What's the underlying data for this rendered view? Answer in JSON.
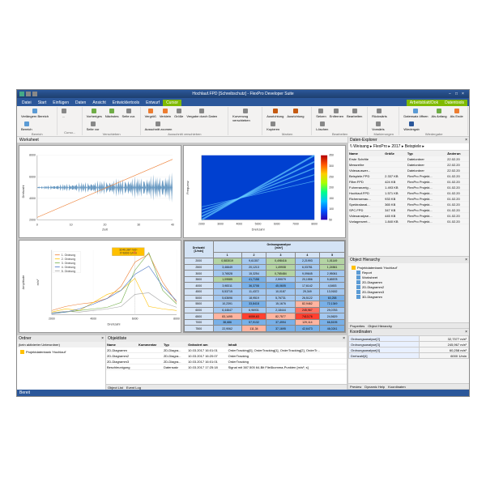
{
  "title": "Hochlauf.FPD [Schreibschutz] - FlexPro Developer Suite",
  "menu": [
    "Datei",
    "Start",
    "Einfügen",
    "Daten",
    "Ansicht",
    "Entwicklertools",
    "Entwurf",
    "Cursor"
  ],
  "activeTab": "Cursor",
  "tabGroup2": [
    "Arbeitsblatt/Dok",
    "Datentools"
  ],
  "ribbon": [
    {
      "label": "Bereich",
      "btns": [
        {
          "t": "Verlängern Bereich",
          "c": "#5b9bd5"
        },
        {
          "t": "Bereich",
          "c": "#5b9bd5"
        }
      ]
    },
    {
      "label": "Curso...",
      "btns": [
        {
          "t": "...",
          "c": "#888"
        }
      ]
    },
    {
      "label": "Verschieben",
      "btns": [
        {
          "t": "Vorheriges",
          "c": "#70ad47"
        },
        {
          "t": "Nächstes",
          "c": "#70ad47"
        },
        {
          "t": "Seite zur.",
          "c": "#888"
        },
        {
          "t": "Seite vor",
          "c": "#888"
        }
      ]
    },
    {
      "label": "Ausschnitt verschieben",
      "btns": [
        {
          "t": "Vergröß",
          "c": "#ed7d31"
        },
        {
          "t": "Verklein",
          "c": "#ed7d31"
        },
        {
          "t": "Größe",
          "c": "#888"
        },
        {
          "t": "Vergabe durch Daten",
          "c": "#888"
        },
        {
          "t": "Ausschnitt zoomen",
          "c": "#888"
        }
      ]
    },
    {
      "label": "",
      "btns": [
        {
          "t": "Kurvenzug verschieben",
          "c": "#888"
        }
      ]
    },
    {
      "label": "Marken",
      "btns": [
        {
          "t": "Ausrichtung",
          "c": "#c55a11"
        },
        {
          "t": "Ausrichtung",
          "c": "#c55a11"
        },
        {
          "t": "Kopieren",
          "c": "#888"
        }
      ]
    },
    {
      "label": "Bearbeiten",
      "btns": [
        {
          "t": "Setzen",
          "c": "#888"
        },
        {
          "t": "Entfernen",
          "c": "#888"
        },
        {
          "t": "Bearbeiten",
          "c": "#888"
        },
        {
          "t": "Löschen",
          "c": "#888"
        }
      ]
    },
    {
      "label": "Markierungen",
      "btns": [
        {
          "t": "Rückwärts",
          "c": "#888"
        },
        {
          "t": "Vorwärts",
          "c": "#888"
        }
      ]
    },
    {
      "label": "Wiedergabe",
      "btns": [
        {
          "t": "Datensatz öffnen",
          "c": "#5b9bd5"
        },
        {
          "t": "Als Anfang",
          "c": "#70ad47"
        },
        {
          "t": "Als Ende",
          "c": "#ed7d31"
        },
        {
          "t": "Wiedergab",
          "c": "#2b579a"
        }
      ]
    }
  ],
  "worksheetTab": "Worksheet",
  "waveform": {
    "ylabel": "Drehzahl",
    "yunit": "1/min",
    "ylim": [
      2000,
      8000
    ],
    "yticks": [
      2000,
      4000,
      6000,
      8000
    ],
    "xlabel": "Zeit",
    "xunit": "s",
    "xlim": [
      0,
      40
    ],
    "xticks": [
      0,
      10,
      20,
      30,
      40
    ],
    "wave_color": "#4682b4",
    "trend_color": "#ed7d31",
    "bg": "#ffffff"
  },
  "spectro": {
    "ylabel": "Frequenz",
    "yunit": "Hz",
    "xlabel": "Drehzahl",
    "xunit": "1/min",
    "xlim": [
      2000,
      8000
    ],
    "xticks": [
      2000,
      3000,
      4000,
      5000,
      6000,
      7000,
      8000
    ],
    "colorbar": {
      "label": "Spektrogram",
      "vals": [
        50,
        100,
        150,
        200,
        250,
        300,
        350
      ],
      "colors": [
        "#2b00b3",
        "#0055ff",
        "#00c3ff",
        "#00ff88",
        "#aaff00",
        "#ffcc00",
        "#ff5500",
        "#b30000"
      ]
    }
  },
  "orders": {
    "ylabel": "Amplitude",
    "yunit": "m/s²",
    "xlabel": "Drehzahl",
    "xunit": "1/min",
    "xlim": [
      2000,
      8000
    ],
    "xticks": [
      2000,
      4000,
      6000,
      8000
    ],
    "ylim": [
      0,
      100
    ],
    "callout": "3240,387 m/s²\\nX=6000 1/min",
    "legend": [
      {
        "l": "1. Ordnung",
        "c": "#ed7d31"
      },
      {
        "l": "2. Ordnung",
        "c": "#ffc000"
      },
      {
        "l": "3. Ordnung",
        "c": "#70ad47"
      },
      {
        "l": "4. Ordnung",
        "c": "#4472c4"
      },
      {
        "l": "5. Ordnung",
        "c": "#a5a5a5"
      }
    ]
  },
  "table": {
    "header1": "Drehzahl",
    "header1u": "[1/min]",
    "header2": "Ordnungsanalyse",
    "header2u": "[m/s²]",
    "cols": [
      "1",
      "2",
      "3",
      "4",
      "5"
    ],
    "rows": [
      [
        "2000",
        "0,583019",
        "9,61307",
        "0,498416",
        "2,21993",
        "1,01149"
      ],
      [
        "2500",
        "3,46649",
        "20,1213",
        "1,49908",
        "6,03781",
        "1,24561"
      ],
      [
        "3000",
        "3,76528",
        "15,3254",
        "0,765484",
        "9,09645",
        "2,95061"
      ],
      [
        "3500",
        "1,09585",
        "41,7158",
        "2,59079",
        "20,1556",
        "5,65578"
      ],
      [
        "4000",
        "3,98311",
        "36,3708",
        "45,0605",
        "17,6142",
        "4,5453"
      ],
      [
        "4500",
        "5,53715",
        "11,4372",
        "10,0187",
        "29,349",
        "13,9182"
      ],
      [
        "5000",
        "5,63696",
        "18,9519",
        "5,76731",
        "26,5122",
        "60,258"
      ],
      [
        "5500",
        "10,2391",
        "33,8418",
        "15,1676",
        "82,9462",
        "72,1349"
      ],
      [
        "6000",
        "6,44647",
        "6,96931",
        "2,18444",
        "245,967",
        "29,0783"
      ],
      [
        "6500",
        "83,1495",
        "6059,63",
        "82,7577",
        "7413,76",
        "24,5629"
      ],
      [
        "7000",
        "38,686",
        "57,9132",
        "37,4994",
        "129,114",
        "66,8195"
      ],
      [
        "7500",
        "22,9062",
        "111,34",
        "37,1695",
        "42,6473",
        "46,0241"
      ]
    ],
    "cellcolors": [
      [
        "#b4d4a4",
        "#a4c8f0",
        "#b4d4a4",
        "#a4c8f0",
        "#b4d4a4"
      ],
      [
        "#a4c8f0",
        "#a4c8f0",
        "#b4d4a4",
        "#a4c8f0",
        "#b4d4a4"
      ],
      [
        "#a4c8f0",
        "#a4c8f0",
        "#b4d4a4",
        "#a4c8f0",
        "#a4c8f0"
      ],
      [
        "#b4d4a4",
        "#78b0e8",
        "#a4c8f0",
        "#a4c8f0",
        "#a4c8f0"
      ],
      [
        "#a4c8f0",
        "#78b0e8",
        "#78b0e8",
        "#a4c8f0",
        "#a4c8f0"
      ],
      [
        "#a4c8f0",
        "#a4c8f0",
        "#a4c8f0",
        "#a4c8f0",
        "#a4c8f0"
      ],
      [
        "#a4c8f0",
        "#a4c8f0",
        "#a4c8f0",
        "#a4c8f0",
        "#78b0e8"
      ],
      [
        "#a4c8f0",
        "#78b0e8",
        "#a4c8f0",
        "#ffb4a0",
        "#78b0e8"
      ],
      [
        "#a4c8f0",
        "#a4c8f0",
        "#a4c8f0",
        "#ff7060",
        "#a4c8f0"
      ],
      [
        "#ffb4a0",
        "#ff4030",
        "#ffb4a0",
        "#ff4030",
        "#a4c8f0"
      ],
      [
        "#78b0e8",
        "#78b0e8",
        "#78b0e8",
        "#ffb4a0",
        "#78b0e8"
      ],
      [
        "#a4c8f0",
        "#ffb4a0",
        "#78b0e8",
        "#78b0e8",
        "#78b0e8"
      ]
    ]
  },
  "explorer": {
    "title": "Daten-Explorer",
    "bcrumb": "\\\\ Weisang ▸ FlexPro ▸ 2017 ▸ Beispiele ▸",
    "cols": [
      "Name",
      "Größe",
      "Typ",
      "Änderun"
    ],
    "rows": [
      [
        "Erste Schritte",
        "",
        "Dateiordner",
        "22.02.20"
      ],
      [
        "Messreihe",
        "",
        "Dateiordner",
        "22.02.20"
      ],
      [
        "Videoauswer...",
        "",
        "Dateiordner",
        "22.02.20"
      ],
      [
        "Beispiele.FPD",
        "2.337 KB",
        "FlexPro Projekt...",
        "01.02.20"
      ],
      [
        "Filter.FPD",
        "424 KB",
        "FlexPro Projekt...",
        "01.02.20"
      ],
      [
        "Fuhreranzeig...",
        "1.493 KB",
        "FlexPro Projekt...",
        "01.02.20"
      ],
      [
        "Hochlauf.FPD",
        "1.571 KB",
        "FlexPro Projekt...",
        "01.02.20"
      ],
      [
        "Richensenau...",
        "933 KB",
        "FlexPro Projekt...",
        "01.02.20"
      ],
      [
        "Spektralanal...",
        "365 KB",
        "FlexPro Projekt...",
        "01.02.20"
      ],
      [
        "SPC.FPD",
        "347 KB",
        "FlexPro Projekt...",
        "01.02.20"
      ],
      [
        "Videoanalyse...",
        "445 KB",
        "FlexPro Projekt...",
        "01.02.20"
      ],
      [
        "Vorlagenvert...",
        "1.840 KB",
        "FlexPro Projekt...",
        "01.02.20"
      ]
    ]
  },
  "hierarchy": {
    "title": "Object Hierarchy",
    "root": "Projektdatenbank 'Hochlauf'",
    "items": [
      "Report",
      "Worksheet",
      "2D-Diagramm",
      "2D-Diagramm2",
      "2D-Diagramm3",
      "3D-Diagramm"
    ],
    "tabs": [
      "Properties",
      "Object Hierarchy"
    ]
  },
  "koord": {
    "title": "Koordinaten",
    "rows": [
      [
        "Ordnungsanalyse[2]",
        "32,7377 m/s²"
      ],
      [
        "Ordnungsanalyse[3]",
        "245,967 m/s²"
      ],
      [
        "Ordnungsanalyse[4]",
        "60,258 m/s²"
      ],
      [
        "Drehzahl[4]",
        "6000 1/min"
      ]
    ],
    "tabs": [
      "Preview",
      "Dynamic Help",
      "Koordinaten"
    ]
  },
  "ordner": {
    "title": "Ordner",
    "sub": "(kein aktivierter Unterordner)",
    "root": "Projektdatenbank 'Hochlauf'"
  },
  "objlist": {
    "title": "Objektliste",
    "cols": [
      "Name",
      "Kommentar",
      "Typ",
      "Geändert am",
      "Inhalt"
    ],
    "rows": [
      [
        "2D-Diagramm",
        "",
        "2D-Diagra...",
        "10.03.2017 16:01:01",
        "OrderTracking[0], OrderTracking[1], OrderTracking[2], OrderTr..."
      ],
      [
        "2D-Diagramm2",
        "",
        "2D-Diagra...",
        "10.03.2017 16:20:07",
        "OrderTracking"
      ],
      [
        "2D-Diagramm3",
        "",
        "2D-Diagra...",
        "10.03.2017 16:01:01",
        "OrderTracking"
      ],
      [
        "Beschleunigung",
        "",
        "Datensatz",
        "10.03.2017 17:25:18",
        "Signal mit 387.505 64-Bit Fließkomma-Punkten [m/s²; s]"
      ]
    ],
    "tabs": [
      "Object List",
      "Event Log"
    ]
  },
  "status": "Bereit"
}
